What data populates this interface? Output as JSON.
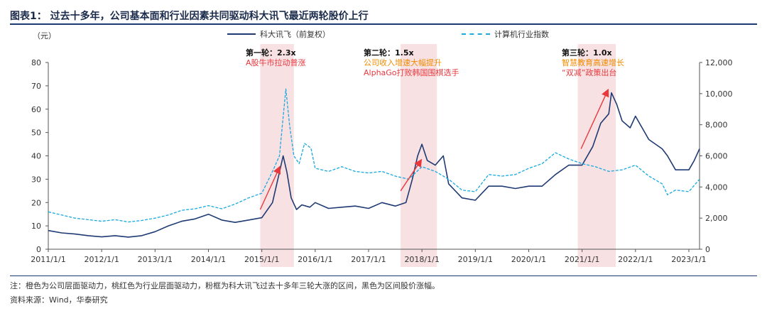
{
  "header": {
    "title": "图表1：  过去十多年，公司基本面和行业因素共同驱动科大讯飞最近两轮股价上行"
  },
  "chart_data": {
    "type": "line",
    "unit_left": "（元）",
    "legend": {
      "series_a": "科大讯飞（前复权）",
      "series_b": "计算机行业指数"
    },
    "x_tick_labels": [
      "2011/1/1",
      "2012/1/1",
      "2013/1/1",
      "2014/1/1",
      "2015/1/1",
      "2016/1/1",
      "2017/1/1",
      "2018/1/1",
      "2019/1/1",
      "2020/1/1",
      "2021/1/1",
      "2022/1/1",
      "2023/1/1"
    ],
    "x_range": [
      2011.0,
      2023.2
    ],
    "y_left": {
      "ticks": [
        0,
        10,
        20,
        30,
        40,
        50,
        60,
        70,
        80
      ],
      "range": [
        0,
        80
      ]
    },
    "y_right": {
      "ticks": [
        0,
        2000,
        4000,
        6000,
        8000,
        10000,
        12000
      ],
      "labels": [
        "0",
        "2,000",
        "4,000",
        "6,000",
        "8,000",
        "10,000",
        "12,000"
      ],
      "range": [
        0,
        12000
      ]
    },
    "series": [
      {
        "name": "科大讯飞（前复权）",
        "axis": "left",
        "color": "#1f3a73",
        "style": "solid",
        "points": [
          [
            2011.0,
            8
          ],
          [
            2011.25,
            7
          ],
          [
            2011.5,
            6.5
          ],
          [
            2011.75,
            5.8
          ],
          [
            2012.0,
            5.3
          ],
          [
            2012.25,
            5.8
          ],
          [
            2012.5,
            5.2
          ],
          [
            2012.75,
            5.8
          ],
          [
            2013.0,
            7.5
          ],
          [
            2013.25,
            10
          ],
          [
            2013.5,
            12
          ],
          [
            2013.75,
            13
          ],
          [
            2014.0,
            15
          ],
          [
            2014.25,
            12.5
          ],
          [
            2014.5,
            11.5
          ],
          [
            2014.75,
            12.5
          ],
          [
            2015.0,
            13.5
          ],
          [
            2015.2,
            20
          ],
          [
            2015.33,
            33
          ],
          [
            2015.4,
            40
          ],
          [
            2015.47,
            33
          ],
          [
            2015.55,
            22
          ],
          [
            2015.65,
            17
          ],
          [
            2015.75,
            19
          ],
          [
            2015.9,
            18
          ],
          [
            2016.0,
            20
          ],
          [
            2016.25,
            17.5
          ],
          [
            2016.5,
            18
          ],
          [
            2016.75,
            18.5
          ],
          [
            2017.0,
            17.5
          ],
          [
            2017.25,
            20
          ],
          [
            2017.5,
            18.5
          ],
          [
            2017.7,
            20
          ],
          [
            2017.82,
            30
          ],
          [
            2017.92,
            40
          ],
          [
            2018.0,
            45
          ],
          [
            2018.1,
            38
          ],
          [
            2018.25,
            36
          ],
          [
            2018.4,
            40
          ],
          [
            2018.5,
            28
          ],
          [
            2018.75,
            22
          ],
          [
            2019.0,
            21
          ],
          [
            2019.25,
            27
          ],
          [
            2019.5,
            27
          ],
          [
            2019.75,
            26
          ],
          [
            2020.0,
            27
          ],
          [
            2020.25,
            27
          ],
          [
            2020.5,
            32
          ],
          [
            2020.75,
            36
          ],
          [
            2021.0,
            36
          ],
          [
            2021.2,
            44
          ],
          [
            2021.35,
            54
          ],
          [
            2021.5,
            58
          ],
          [
            2021.55,
            67
          ],
          [
            2021.65,
            62
          ],
          [
            2021.75,
            55
          ],
          [
            2021.9,
            52
          ],
          [
            2022.0,
            57
          ],
          [
            2022.25,
            47
          ],
          [
            2022.5,
            43
          ],
          [
            2022.6,
            40
          ],
          [
            2022.75,
            34
          ],
          [
            2023.0,
            34
          ],
          [
            2023.1,
            38
          ],
          [
            2023.2,
            43
          ]
        ]
      },
      {
        "name": "计算机行业指数",
        "axis": "right",
        "color": "#19a8e0",
        "style": "dashed",
        "points": [
          [
            2011.0,
            2400
          ],
          [
            2011.25,
            2200
          ],
          [
            2011.5,
            2000
          ],
          [
            2011.75,
            1900
          ],
          [
            2012.0,
            1800
          ],
          [
            2012.25,
            1900
          ],
          [
            2012.5,
            1750
          ],
          [
            2012.75,
            1850
          ],
          [
            2013.0,
            2000
          ],
          [
            2013.25,
            2200
          ],
          [
            2013.5,
            2500
          ],
          [
            2013.75,
            2600
          ],
          [
            2014.0,
            2800
          ],
          [
            2014.25,
            2600
          ],
          [
            2014.5,
            2900
          ],
          [
            2014.75,
            3300
          ],
          [
            2015.0,
            3600
          ],
          [
            2015.2,
            5000
          ],
          [
            2015.33,
            6000
          ],
          [
            2015.4,
            8500
          ],
          [
            2015.45,
            10300
          ],
          [
            2015.52,
            8000
          ],
          [
            2015.6,
            6000
          ],
          [
            2015.7,
            5500
          ],
          [
            2015.8,
            6800
          ],
          [
            2015.92,
            6500
          ],
          [
            2016.0,
            5200
          ],
          [
            2016.25,
            5000
          ],
          [
            2016.5,
            5300
          ],
          [
            2016.75,
            5000
          ],
          [
            2017.0,
            4900
          ],
          [
            2017.25,
            5000
          ],
          [
            2017.5,
            4700
          ],
          [
            2017.75,
            4500
          ],
          [
            2018.0,
            5300
          ],
          [
            2018.25,
            5000
          ],
          [
            2018.5,
            4500
          ],
          [
            2018.75,
            3800
          ],
          [
            2019.0,
            3700
          ],
          [
            2019.25,
            4800
          ],
          [
            2019.5,
            4700
          ],
          [
            2019.75,
            4800
          ],
          [
            2020.0,
            5200
          ],
          [
            2020.25,
            5500
          ],
          [
            2020.5,
            6200
          ],
          [
            2020.75,
            5800
          ],
          [
            2021.0,
            5500
          ],
          [
            2021.25,
            5300
          ],
          [
            2021.5,
            5000
          ],
          [
            2021.75,
            5100
          ],
          [
            2022.0,
            5400
          ],
          [
            2022.25,
            4700
          ],
          [
            2022.5,
            4200
          ],
          [
            2022.6,
            3500
          ],
          [
            2022.75,
            3800
          ],
          [
            2023.0,
            3700
          ],
          [
            2023.1,
            4100
          ],
          [
            2023.2,
            4500
          ]
        ]
      }
    ],
    "highlight_ranges": [
      {
        "from": 2014.97,
        "to": 2015.6
      },
      {
        "from": 2017.6,
        "to": 2018.28
      },
      {
        "from": 2020.92,
        "to": 2021.63
      }
    ],
    "annotations": [
      {
        "title_cn": "第一轮：",
        "title_value": "2.3x",
        "line1": "A股牛市拉动普涨",
        "line1_color": "#e8383d",
        "line2": "",
        "line2_color": "#e8383d",
        "arrow_from": [
          2014.97,
          17
        ],
        "arrow_to": [
          2015.33,
          35
        ]
      },
      {
        "title_cn": "第二轮：",
        "title_value": "1.5x",
        "line1": "公司收入增速大幅提升",
        "line1_color": "#f08c00",
        "line2": "AlphaGo打败韩国围棋选手",
        "line2_color": "#e8383d",
        "arrow_from": [
          2017.6,
          25
        ],
        "arrow_to": [
          2017.98,
          38
        ]
      },
      {
        "title_cn": "第三轮：",
        "title_value": "1.0x",
        "line1": "智慧教育高速增长",
        "line1_color": "#f08c00",
        "line2": "“双减”政策出台",
        "line2_color": "#e8383d",
        "arrow_from": [
          2020.98,
          43
        ],
        "arrow_to": [
          2021.48,
          68
        ]
      }
    ]
  },
  "footer": {
    "note": "注：橙色为公司层面驱动力，桃红色为行业层面驱动力，粉框为科大讯飞过去十多年三轮大涨的区间，黑色为区间股价涨幅。",
    "source": "资料来源：Wind，华泰研究"
  }
}
